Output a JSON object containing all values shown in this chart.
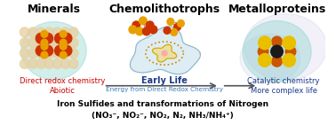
{
  "bg_color": "#ffffff",
  "title_minerals": "Minerals",
  "title_chemo": "Chemolithotrophs",
  "title_metallo": "Metalloproteins",
  "label_left_red1": "Direct redox chemistry",
  "label_left_red2": "Abiotic",
  "label_center_blue": "Early Life",
  "label_center_small": "Energy from Direct Redox Chemistry",
  "label_right_blue1": "Catalytic chemistry",
  "label_right_blue2": "More complex life",
  "bottom_line1": "Iron Sulfides and transformatrions of Nitrogen",
  "bottom_line2": "(NO₃⁻, NO₂⁻, NO₂, N₂, NH₃/NH₄⁺)",
  "arrow_color": "#555555",
  "red_color": "#cc0000",
  "blue_color": "#1a3a8a",
  "light_blue_color": "#3a7ab8",
  "teal_color": "#7fd0c8",
  "minerals_lattice_color": "#e8d0a0",
  "minerals_fe_color": "#cc3300",
  "minerals_s_color": "#e8a000",
  "cell_outer_color": "#b8d8e8",
  "cell_inner_color": "#e8d070",
  "mol_colors_chemo": [
    "#cc3300",
    "#e8a000",
    "#cc3300",
    "#e8a000",
    "#cc3300",
    "#e8a000",
    "#cc3300",
    "#e8a000",
    "#cc3300",
    "#e8a000"
  ],
  "metallo_yellow": "#e8c000",
  "metallo_orange": "#cc5500",
  "metallo_dark": "#1a1a1a"
}
